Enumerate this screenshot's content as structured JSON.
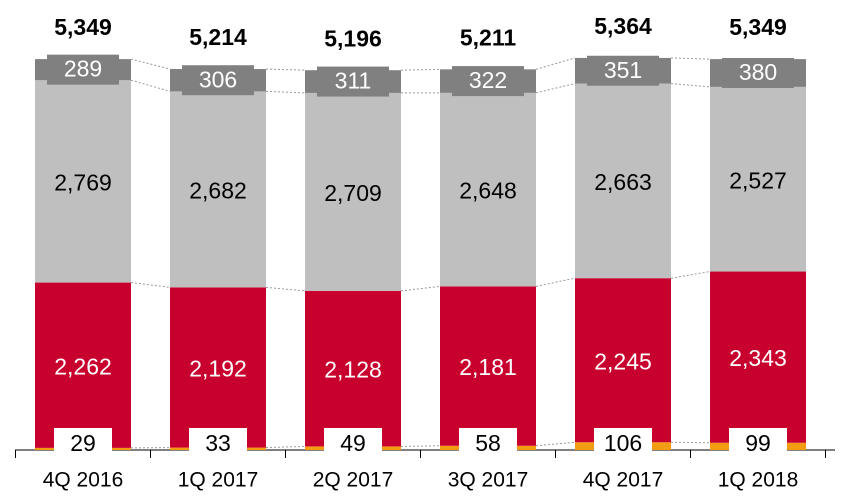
{
  "chart_data": {
    "type": "stacked_bar",
    "categories": [
      "4Q 2016",
      "1Q 2017",
      "2Q 2017",
      "3Q 2017",
      "4Q 2017",
      "1Q 2018"
    ],
    "series": [
      {
        "color": "#f39c12",
        "values": [
          29,
          33,
          49,
          58,
          106,
          99
        ]
      },
      {
        "color": "#c8002d",
        "values": [
          2262,
          2192,
          2128,
          2181,
          2245,
          2343
        ],
        "value_labels": [
          "2,262",
          "2,192",
          "2,128",
          "2,181",
          "2,245",
          "2,343"
        ]
      },
      {
        "color": "#bfbfbf",
        "values": [
          2769,
          2682,
          2709,
          2648,
          2663,
          2527
        ],
        "value_labels": [
          "2,769",
          "2,682",
          "2,709",
          "2,648",
          "2,663",
          "2,527"
        ]
      },
      {
        "color": "#808080",
        "values": [
          289,
          306,
          311,
          322,
          351,
          380
        ]
      }
    ],
    "totals": [
      5349,
      5214,
      5196,
      5211,
      5364,
      5349
    ],
    "total_labels": [
      "5,349",
      "5,214",
      "5,196",
      "5,211",
      "5,364",
      "5,349"
    ]
  }
}
